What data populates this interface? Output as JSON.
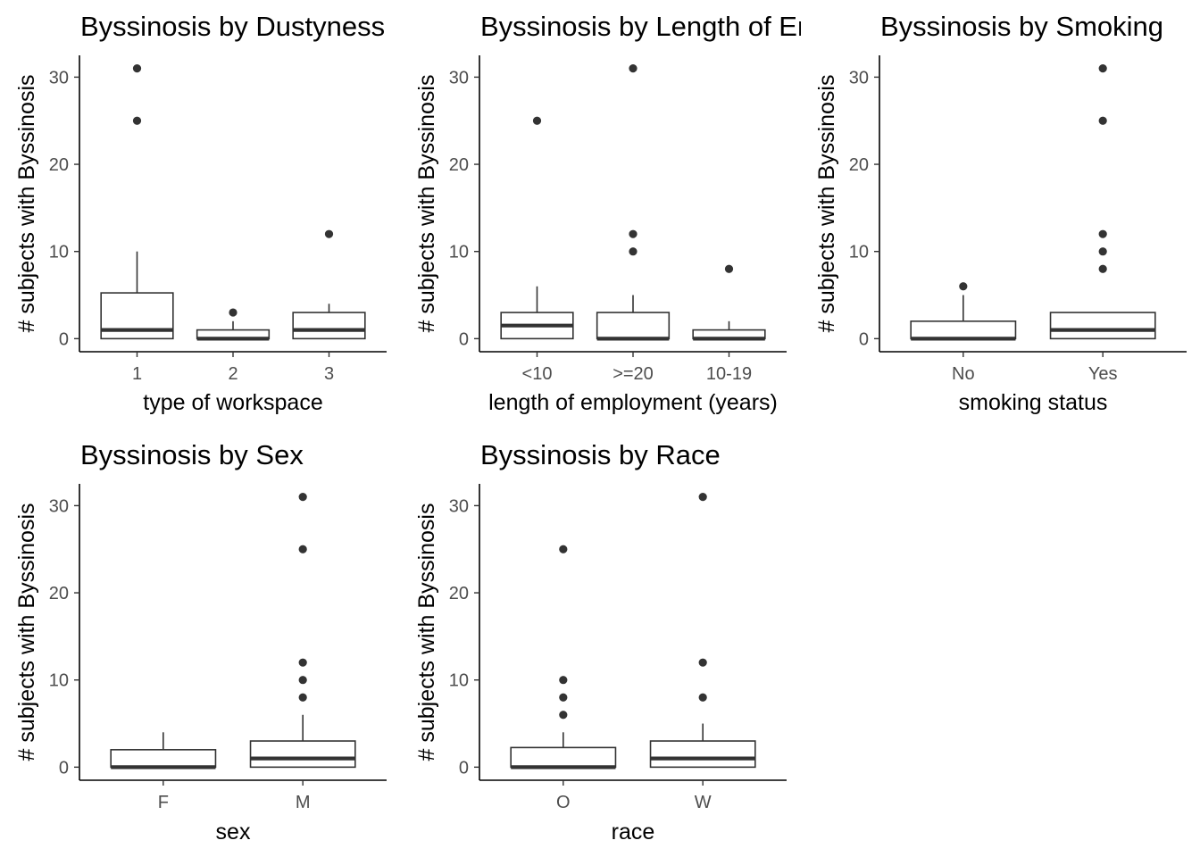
{
  "colors": {
    "box_fill": "#ffffff",
    "box_stroke": "#333333",
    "outlier": "#333333",
    "tick_text": "#4d4d4d",
    "text": "#000000"
  },
  "chart_data": [
    {
      "type": "box",
      "title": "Byssinosis by Dustyness",
      "xlabel": "type of workspace",
      "ylabel": "# subjects with Byssinosis",
      "ylim": [
        -1.5,
        32.5
      ],
      "yticks": [
        0,
        10,
        20,
        30
      ],
      "categories": [
        "1",
        "2",
        "3"
      ],
      "boxes": [
        {
          "category": "1",
          "low": 0,
          "q1": 0,
          "median": 1,
          "q3": 5.25,
          "high": 10,
          "outliers": [
            25,
            31
          ]
        },
        {
          "category": "2",
          "low": 0,
          "q1": 0,
          "median": 0,
          "q3": 1,
          "high": 2,
          "outliers": [
            3
          ]
        },
        {
          "category": "3",
          "low": 0,
          "q1": 0,
          "median": 1,
          "q3": 3,
          "high": 4,
          "outliers": [
            12
          ]
        }
      ]
    },
    {
      "type": "box",
      "title": "Byssinosis by Length of Employment",
      "xlabel": "length of employment (years)",
      "ylabel": "# subjects with Byssinosis",
      "ylim": [
        -1.5,
        32.5
      ],
      "yticks": [
        0,
        10,
        20,
        30
      ],
      "categories": [
        "<10",
        ">=20",
        "10-19"
      ],
      "boxes": [
        {
          "category": "<10",
          "low": 0,
          "q1": 0,
          "median": 1.5,
          "q3": 3,
          "high": 6,
          "outliers": [
            25
          ]
        },
        {
          "category": ">=20",
          "low": 0,
          "q1": 0,
          "median": 0,
          "q3": 3,
          "high": 5,
          "outliers": [
            10,
            12,
            31
          ]
        },
        {
          "category": "10-19",
          "low": 0,
          "q1": 0,
          "median": 0,
          "q3": 1,
          "high": 2,
          "outliers": [
            8
          ]
        }
      ]
    },
    {
      "type": "box",
      "title": "Byssinosis by Smoking",
      "xlabel": "smoking status",
      "ylabel": "# subjects with Byssinosis",
      "ylim": [
        -1.5,
        32.5
      ],
      "yticks": [
        0,
        10,
        20,
        30
      ],
      "categories": [
        "No",
        "Yes"
      ],
      "boxes": [
        {
          "category": "No",
          "low": 0,
          "q1": 0,
          "median": 0,
          "q3": 2,
          "high": 5,
          "outliers": [
            6
          ]
        },
        {
          "category": "Yes",
          "low": 0,
          "q1": 0,
          "median": 1,
          "q3": 3,
          "high": 3,
          "outliers": [
            8,
            10,
            12,
            25,
            31
          ]
        }
      ]
    },
    {
      "type": "box",
      "title": "Byssinosis by Sex",
      "xlabel": "sex",
      "ylabel": "# subjects with Byssinosis",
      "ylim": [
        -1.5,
        32.5
      ],
      "yticks": [
        0,
        10,
        20,
        30
      ],
      "categories": [
        "F",
        "M"
      ],
      "boxes": [
        {
          "category": "F",
          "low": 0,
          "q1": 0,
          "median": 0,
          "q3": 2,
          "high": 4,
          "outliers": []
        },
        {
          "category": "M",
          "low": 0,
          "q1": 0,
          "median": 1,
          "q3": 3,
          "high": 6,
          "outliers": [
            8,
            10,
            12,
            25,
            31
          ]
        }
      ]
    },
    {
      "type": "box",
      "title": "Byssinosis by Race",
      "xlabel": "race",
      "ylabel": "# subjects with Byssinosis",
      "ylim": [
        -1.5,
        32.5
      ],
      "yticks": [
        0,
        10,
        20,
        30
      ],
      "categories": [
        "O",
        "W"
      ],
      "boxes": [
        {
          "category": "O",
          "low": 0,
          "q1": 0,
          "median": 0,
          "q3": 2.25,
          "high": 4,
          "outliers": [
            6,
            8,
            10,
            25
          ]
        },
        {
          "category": "W",
          "low": 0,
          "q1": 0,
          "median": 1,
          "q3": 3,
          "high": 5,
          "outliers": [
            8,
            12,
            31
          ]
        }
      ]
    }
  ]
}
